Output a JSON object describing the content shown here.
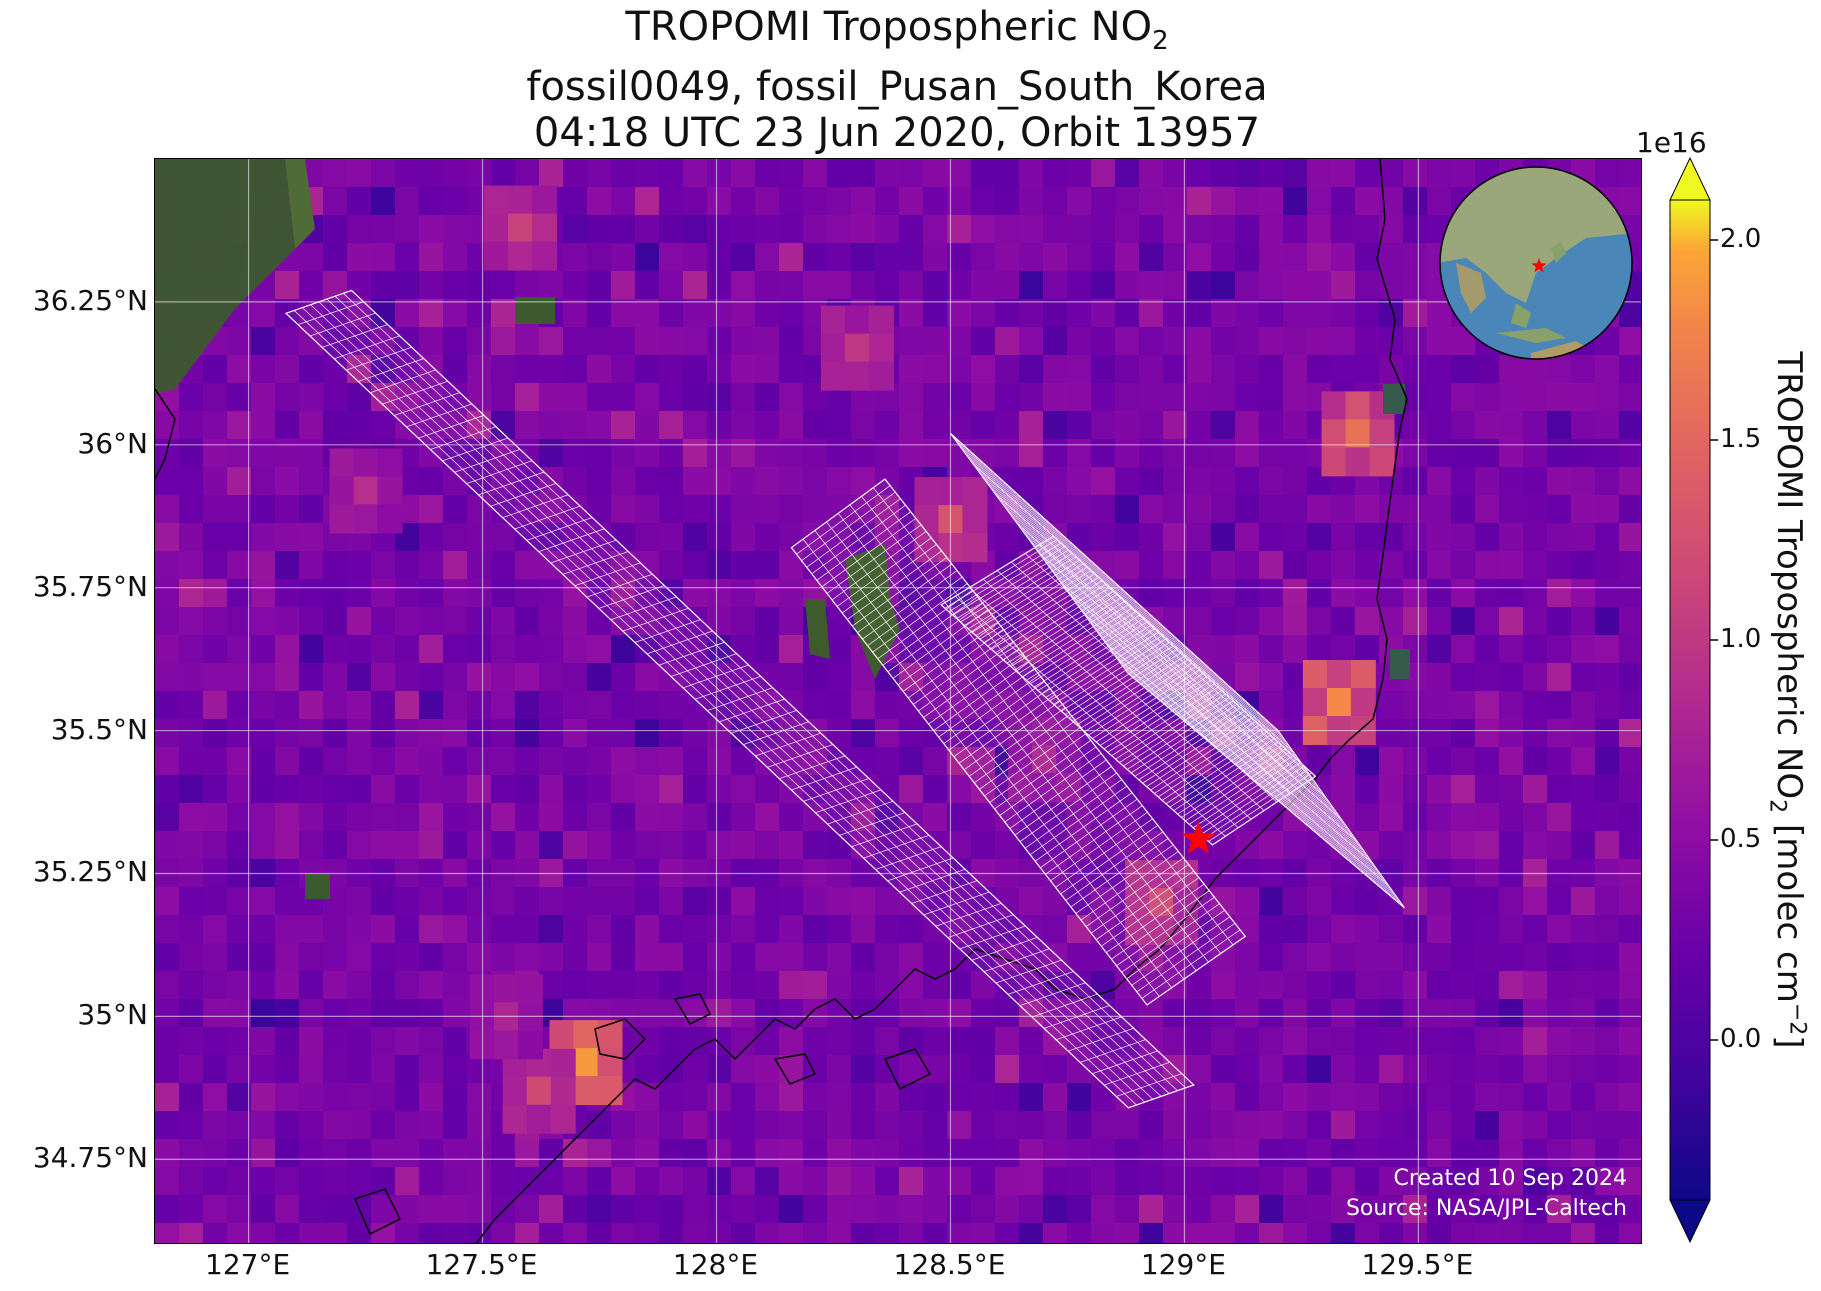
{
  "title": {
    "line1_prefix": "TROPOMI Tropospheric NO",
    "line1_sub": "2",
    "line2": "fossil0049, fossil_Pusan_South_Korea",
    "line3": "04:18 UTC 23 Jun 2020, Orbit 13957"
  },
  "map": {
    "lon_range": [
      126.8,
      129.98
    ],
    "lat_range": [
      34.6,
      36.5
    ],
    "lat_ticks": [
      {
        "value": 36.25,
        "label": "36.25°N"
      },
      {
        "value": 36.0,
        "label": "36°N"
      },
      {
        "value": 35.75,
        "label": "35.75°N"
      },
      {
        "value": 35.5,
        "label": "35.5°N"
      },
      {
        "value": 35.25,
        "label": "35.25°N"
      },
      {
        "value": 35.0,
        "label": "35°N"
      },
      {
        "value": 34.75,
        "label": "34.75°N"
      }
    ],
    "lon_ticks": [
      {
        "value": 127.0,
        "label": "127°E"
      },
      {
        "value": 127.5,
        "label": "127.5°E"
      },
      {
        "value": 128.0,
        "label": "128°E"
      },
      {
        "value": 128.5,
        "label": "128.5°E"
      },
      {
        "value": 129.0,
        "label": "129°E"
      },
      {
        "value": 129.5,
        "label": "129.5°E"
      }
    ],
    "gridlines": true,
    "background_color": "#5a16a8",
    "target": {
      "name": "fossil_Pusan_South_Korea",
      "lon": 129.03,
      "lat": 35.31,
      "marker": "red-star",
      "color": "#ff0000"
    },
    "hotspots": [
      {
        "lon": 127.72,
        "lat": 34.92,
        "no2": 1.9
      },
      {
        "lon": 127.62,
        "lat": 34.87,
        "no2": 1.2
      },
      {
        "lon": 127.55,
        "lat": 35.0,
        "no2": 0.8
      },
      {
        "lon": 128.95,
        "lat": 35.2,
        "no2": 1.2
      },
      {
        "lon": 129.33,
        "lat": 35.55,
        "no2": 1.8
      },
      {
        "lon": 129.37,
        "lat": 36.02,
        "no2": 1.6
      },
      {
        "lon": 128.5,
        "lat": 35.87,
        "no2": 1.3
      },
      {
        "lon": 127.58,
        "lat": 36.38,
        "no2": 1.1
      },
      {
        "lon": 127.25,
        "lat": 35.92,
        "no2": 0.9
      },
      {
        "lon": 128.3,
        "lat": 36.17,
        "no2": 1.0
      },
      {
        "lon": 128.7,
        "lat": 35.45,
        "no2": 0.8
      }
    ],
    "oco_swaths": [
      {
        "name": "swath-1",
        "corners": [
          [
            127.08,
            36.23
          ],
          [
            127.22,
            36.27
          ],
          [
            129.02,
            34.88
          ],
          [
            128.88,
            34.84
          ]
        ]
      },
      {
        "name": "swath-2",
        "corners": [
          [
            128.16,
            35.82
          ],
          [
            128.36,
            35.94
          ],
          [
            129.13,
            35.14
          ],
          [
            128.92,
            35.02
          ]
        ]
      },
      {
        "name": "swath-3",
        "corners": [
          [
            128.48,
            35.72
          ],
          [
            128.72,
            35.84
          ],
          [
            129.28,
            35.42
          ],
          [
            129.06,
            35.3
          ]
        ]
      },
      {
        "name": "swath-4",
        "corners": [
          [
            128.5,
            36.02
          ],
          [
            128.88,
            35.6
          ],
          [
            129.47,
            35.19
          ],
          [
            129.2,
            35.5
          ]
        ]
      }
    ],
    "created_text": "Created 10 Sep 2024",
    "source_text": "Source: NASA/JPL-Caltech"
  },
  "colorbar": {
    "min": -0.4,
    "max": 2.1,
    "exponent_label": "1e16",
    "ticks": [
      {
        "value": 0.0,
        "label": "0.0"
      },
      {
        "value": 0.5,
        "label": "0.5"
      },
      {
        "value": 1.0,
        "label": "1.0"
      },
      {
        "value": 1.5,
        "label": "1.5"
      },
      {
        "value": 2.0,
        "label": "2.0"
      }
    ],
    "title_prefix": "TROPOMI Tropospheric NO",
    "title_sub": "2",
    "title_units_prefix": " [molec cm",
    "title_sup": "−2",
    "title_suffix": "]",
    "colormap": "plasma"
  },
  "inset": {
    "type": "globe",
    "ocean_color": "#4a86b8",
    "land_color": "#9aa77a",
    "marker_color": "#ff0000"
  }
}
